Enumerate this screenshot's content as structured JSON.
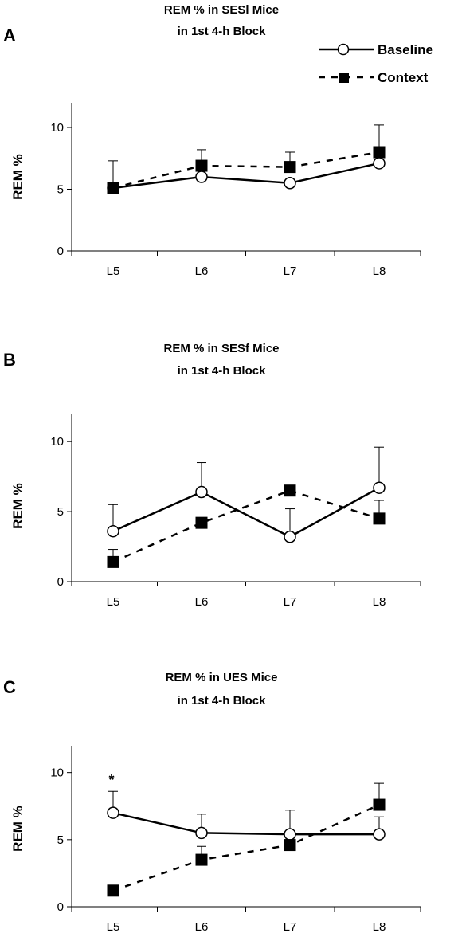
{
  "legend": {
    "entries": [
      {
        "label": "Baseline",
        "marker": "open-circle",
        "line": "solid"
      },
      {
        "label": "Context",
        "marker": "filled-square",
        "line": "dashed"
      }
    ]
  },
  "chart_data": [
    {
      "type": "line",
      "panel": "A",
      "title_line1": "REM % in SESl  Mice",
      "title_line2": "in 1st 4-h Block",
      "ylabel": "REM %",
      "xlabel": "",
      "categories": [
        "L5",
        "L6",
        "L7",
        "L8"
      ],
      "ylim": [
        0,
        12
      ],
      "yticks": [
        0,
        5,
        10
      ],
      "series": [
        {
          "name": "Baseline",
          "values": [
            5.1,
            6.0,
            5.5,
            7.1
          ],
          "error": [
            0,
            0,
            0,
            0
          ]
        },
        {
          "name": "Context",
          "values": [
            5.1,
            6.9,
            6.8,
            8.0
          ],
          "error": [
            2.2,
            1.3,
            1.2,
            2.2
          ]
        }
      ],
      "annotations": []
    },
    {
      "type": "line",
      "panel": "B",
      "title_line1": "REM % in SESf  Mice",
      "title_line2": "in 1st 4-h Block",
      "ylabel": "REM %",
      "xlabel": "",
      "categories": [
        "L5",
        "L6",
        "L7",
        "L8"
      ],
      "ylim": [
        0,
        12
      ],
      "yticks": [
        0,
        5,
        10
      ],
      "series": [
        {
          "name": "Baseline",
          "values": [
            3.6,
            6.4,
            3.2,
            6.7
          ],
          "error": [
            1.9,
            2.1,
            2.0,
            2.9
          ]
        },
        {
          "name": "Context",
          "values": [
            1.4,
            4.2,
            6.5,
            4.5
          ],
          "error": [
            0.9,
            0,
            0,
            1.3
          ]
        }
      ],
      "annotations": []
    },
    {
      "type": "line",
      "panel": "C",
      "title_line1": "REM % in UES  Mice",
      "title_line2": "in 1st 4-h Block",
      "ylabel": "REM %",
      "xlabel": "",
      "categories": [
        "L5",
        "L6",
        "L7",
        "L8"
      ],
      "ylim": [
        0,
        12
      ],
      "yticks": [
        0,
        5,
        10
      ],
      "series": [
        {
          "name": "Baseline",
          "values": [
            7.0,
            5.5,
            5.4,
            5.4
          ],
          "error": [
            1.6,
            1.4,
            1.8,
            1.3
          ]
        },
        {
          "name": "Context",
          "values": [
            1.2,
            3.5,
            4.6,
            7.6
          ],
          "error": [
            0,
            1.0,
            0,
            1.6
          ]
        }
      ],
      "annotations": [
        {
          "category": "L5",
          "text": "*"
        }
      ]
    }
  ]
}
